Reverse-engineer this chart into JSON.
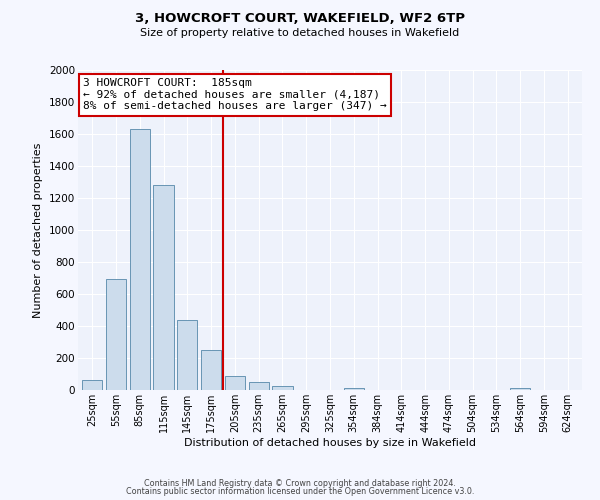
{
  "title": "3, HOWCROFT COURT, WAKEFIELD, WF2 6TP",
  "subtitle": "Size of property relative to detached houses in Wakefield",
  "xlabel": "Distribution of detached houses by size in Wakefield",
  "ylabel": "Number of detached properties",
  "bar_color": "#ccdcec",
  "bar_edge_color": "#5588aa",
  "background_color": "#eef2fb",
  "grid_color": "#ffffff",
  "categories": [
    "25sqm",
    "55sqm",
    "85sqm",
    "115sqm",
    "145sqm",
    "175sqm",
    "205sqm",
    "235sqm",
    "265sqm",
    "295sqm",
    "325sqm",
    "354sqm",
    "384sqm",
    "414sqm",
    "444sqm",
    "474sqm",
    "504sqm",
    "534sqm",
    "564sqm",
    "594sqm",
    "624sqm"
  ],
  "values": [
    65,
    695,
    1630,
    1280,
    440,
    250,
    90,
    50,
    25,
    0,
    0,
    15,
    0,
    0,
    0,
    0,
    0,
    0,
    15,
    0,
    0
  ],
  "ylim": [
    0,
    2000
  ],
  "yticks": [
    0,
    200,
    400,
    600,
    800,
    1000,
    1200,
    1400,
    1600,
    1800,
    2000
  ],
  "vline_x": 5.5,
  "vline_color": "#cc0000",
  "annotation_title": "3 HOWCROFT COURT:  185sqm",
  "annotation_line1": "← 92% of detached houses are smaller (4,187)",
  "annotation_line2": "8% of semi-detached houses are larger (347) →",
  "annotation_box_color": "#ffffff",
  "annotation_box_edge": "#cc0000",
  "footer1": "Contains HM Land Registry data © Crown copyright and database right 2024.",
  "footer2": "Contains public sector information licensed under the Open Government Licence v3.0."
}
